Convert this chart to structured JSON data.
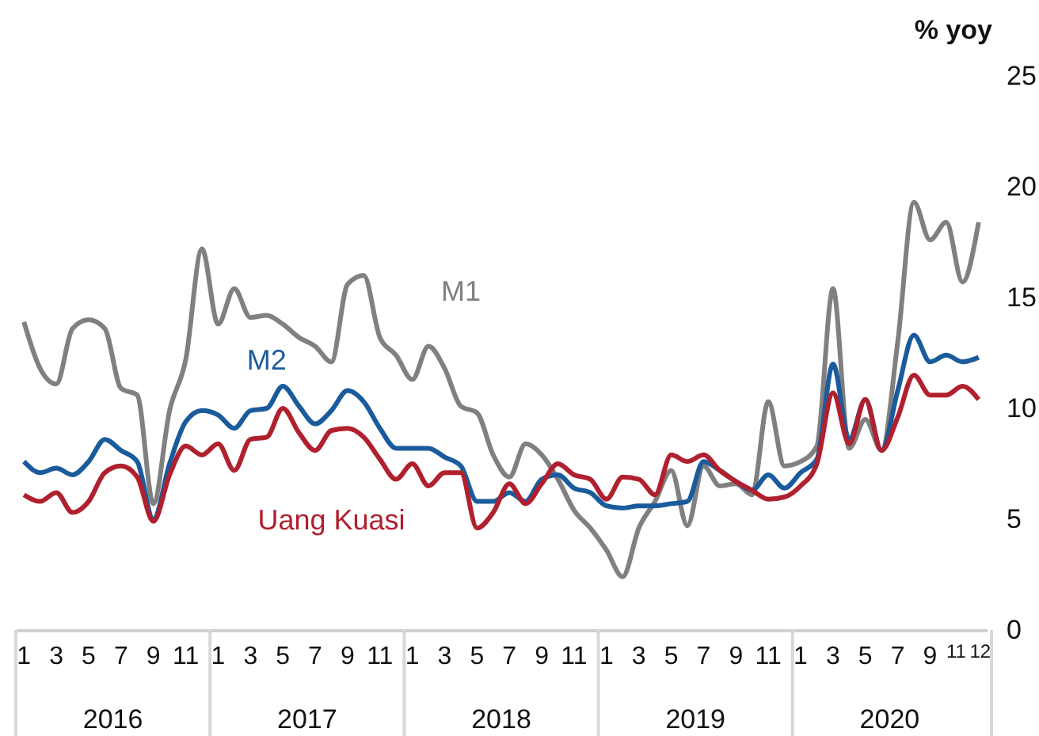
{
  "chart_data": {
    "type": "line",
    "ylabel": "% yoy",
    "ylim": [
      0,
      25
    ],
    "yticks": [
      0,
      5,
      10,
      15,
      20,
      25
    ],
    "categories": [
      "1",
      null,
      "3",
      null,
      "5",
      null,
      "7",
      null,
      "9",
      null,
      "11",
      null,
      "1",
      null,
      "3",
      null,
      "5",
      null,
      "7",
      null,
      "9",
      null,
      "11",
      null,
      "1",
      null,
      "3",
      null,
      "5",
      null,
      "7",
      null,
      "9",
      null,
      "11",
      null,
      "1",
      null,
      "3",
      null,
      "5",
      null,
      "7",
      null,
      "9",
      null,
      "11",
      null,
      "1",
      null,
      "3",
      null,
      "5",
      null,
      "7",
      null,
      "9",
      null,
      "11",
      "12"
    ],
    "annotations": [
      "2016",
      "2017",
      "2018",
      "2019",
      "2020"
    ],
    "series": [
      {
        "name": "M1",
        "color": "#808080",
        "values": [
          13.9,
          11.8,
          11.1,
          13.6,
          14.0,
          13.6,
          10.9,
          10.6,
          5.7,
          9.9,
          12.2,
          17.2,
          13.8,
          15.4,
          14.1,
          14.2,
          13.8,
          13.2,
          12.8,
          12.1,
          15.6,
          16.0,
          13.2,
          12.4,
          11.3,
          12.8,
          11.8,
          10.1,
          9.8,
          7.9,
          6.9,
          8.4,
          7.9,
          6.8,
          5.4,
          4.6,
          3.6,
          2.4,
          4.6,
          5.8,
          7.2,
          4.7,
          7.4,
          6.5,
          6.6,
          6.1,
          10.3,
          7.4,
          7.6,
          8.3,
          15.4,
          8.2,
          9.5,
          8.1,
          13.0,
          19.3,
          17.6,
          18.4,
          15.7,
          18.4
        ]
      },
      {
        "name": "M2",
        "color": "#1a5b9c",
        "values": [
          7.6,
          7.1,
          7.3,
          7.0,
          7.6,
          8.6,
          8.1,
          7.6,
          5.0,
          7.5,
          9.4,
          9.9,
          9.7,
          9.1,
          9.9,
          10.0,
          11.0,
          10.1,
          9.3,
          9.9,
          10.8,
          10.3,
          9.1,
          8.2,
          8.2,
          8.2,
          7.8,
          7.4,
          5.8,
          5.8,
          6.2,
          5.8,
          6.8,
          7.0,
          6.4,
          6.2,
          5.6,
          5.5,
          5.6,
          5.6,
          5.7,
          5.8,
          7.6,
          7.2,
          6.7,
          6.3,
          7.0,
          6.4,
          7.1,
          7.7,
          12.0,
          8.6,
          10.4,
          8.1,
          10.8,
          13.3,
          12.1,
          12.4,
          12.1,
          12.3
        ]
      },
      {
        "name": "Uang Kuasi",
        "color": "#b0202e",
        "values": [
          6.1,
          5.8,
          6.2,
          5.3,
          5.8,
          7.1,
          7.4,
          6.9,
          4.9,
          7.0,
          8.3,
          7.9,
          8.4,
          7.2,
          8.6,
          8.7,
          10.0,
          8.9,
          8.1,
          9.0,
          9.1,
          8.7,
          7.7,
          6.8,
          7.5,
          6.5,
          7.1,
          7.1,
          4.6,
          5.3,
          6.6,
          5.7,
          6.6,
          7.5,
          7.0,
          6.8,
          5.9,
          6.9,
          6.8,
          6.1,
          7.9,
          7.6,
          7.9,
          7.2,
          6.7,
          6.3,
          5.9,
          6.0,
          6.5,
          7.5,
          10.7,
          8.4,
          10.4,
          8.1,
          9.6,
          11.5,
          10.6,
          10.6,
          11.0,
          10.4
        ]
      }
    ]
  }
}
